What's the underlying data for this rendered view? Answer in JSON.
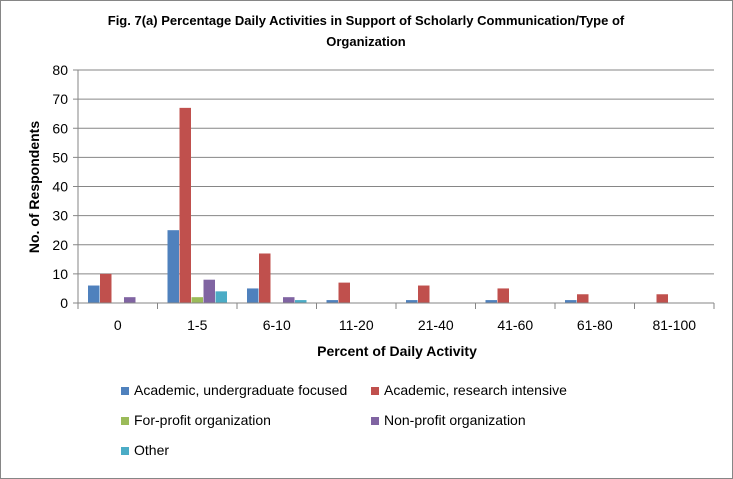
{
  "chart_data": {
    "type": "bar",
    "title": "Fig. 7(a) Percentage Daily Activities in Support of  Scholarly Communication/Type  of Organization",
    "title_lines": [
      "Fig. 7(a) Percentage Daily Activities in Support of  Scholarly Communication/Type  of",
      "Organization"
    ],
    "xlabel": "Percent of Daily Activity",
    "ylabel": "No. of Respondents",
    "ylim": [
      0,
      80
    ],
    "yticks": [
      "0",
      "10",
      "20",
      "30",
      "40",
      "50",
      "60",
      "70",
      "80"
    ],
    "grid": "horizontal",
    "legend_position": "bottom",
    "categories": [
      "0",
      "1-5",
      "6-10",
      "11-20",
      "21-40",
      "41-60",
      "61-80",
      "81-100"
    ],
    "series": [
      {
        "name": "Academic, undergraduate focused",
        "color": "#4F81BD",
        "values": [
          6,
          25,
          5,
          1,
          1,
          1,
          1,
          0
        ]
      },
      {
        "name": "Academic, research intensive",
        "color": "#C0504D",
        "values": [
          10,
          67,
          17,
          7,
          6,
          5,
          3,
          3
        ]
      },
      {
        "name": "For-profit organization",
        "color": "#9BBB59",
        "values": [
          0,
          2,
          0,
          0,
          0,
          0,
          0,
          0
        ]
      },
      {
        "name": "Non-profit organization",
        "color": "#8064A2",
        "values": [
          2,
          8,
          2,
          0,
          0,
          0,
          0,
          0
        ]
      },
      {
        "name": "Other",
        "color": "#4BACC6",
        "values": [
          0,
          4,
          1,
          0,
          0,
          0,
          0,
          0
        ]
      }
    ]
  }
}
